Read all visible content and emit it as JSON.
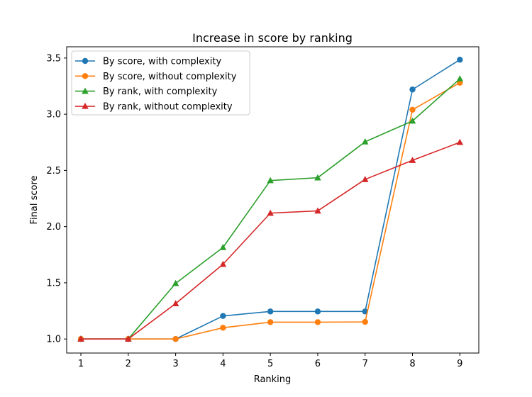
{
  "chart_data": {
    "type": "line",
    "title": "Increase in score by ranking",
    "xlabel": "Ranking",
    "ylabel": "Final score",
    "x": [
      1,
      2,
      3,
      4,
      5,
      6,
      7,
      8,
      9
    ],
    "xlim": [
      0.7,
      9.4
    ],
    "ylim": [
      0.875,
      3.6
    ],
    "xticks": [
      "1",
      "2",
      "3",
      "4",
      "5",
      "6",
      "7",
      "8",
      "9"
    ],
    "yticks": [
      "1.0",
      "1.5",
      "2.0",
      "2.5",
      "3.0",
      "3.5"
    ],
    "grid": false,
    "legend_position": "top-left",
    "series": [
      {
        "name": "By score, with complexity",
        "color": "#1f77b4",
        "marker": "circle",
        "values": [
          1.0,
          1.0,
          1.0,
          1.205,
          1.245,
          1.245,
          1.245,
          3.22,
          3.485
        ]
      },
      {
        "name": "By score, without complexity",
        "color": "#ff7f0e",
        "marker": "circle",
        "values": [
          1.0,
          1.0,
          1.0,
          1.1,
          1.15,
          1.15,
          1.152,
          3.04,
          3.28
        ]
      },
      {
        "name": "By rank, with complexity",
        "color": "#2ca02c",
        "marker": "triangle",
        "values": [
          1.0,
          1.0,
          1.495,
          1.815,
          2.41,
          2.435,
          2.755,
          2.94,
          3.315
        ]
      },
      {
        "name": "By rank, without complexity",
        "color": "#d62728",
        "marker": "triangle",
        "values": [
          1.0,
          1.0,
          1.315,
          1.665,
          2.12,
          2.14,
          2.42,
          2.59,
          2.75
        ]
      }
    ]
  }
}
